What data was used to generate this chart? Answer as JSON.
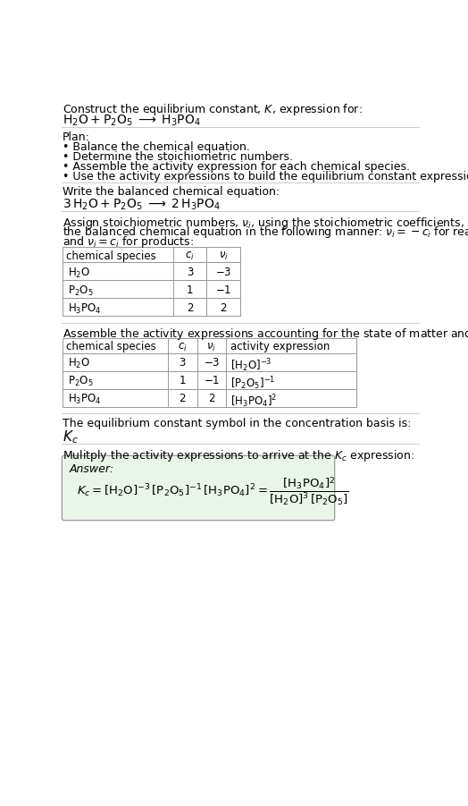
{
  "title_line1": "Construct the equilibrium constant, $K$, expression for:",
  "title_line2": "$\\mathrm{H_2O + P_2O_5 \\;\\longrightarrow\\; H_3PO_4}$",
  "plan_header": "Plan:",
  "plan_steps": [
    "• Balance the chemical equation.",
    "• Determine the stoichiometric numbers.",
    "• Assemble the activity expression for each chemical species.",
    "• Use the activity expressions to build the equilibrium constant expression."
  ],
  "balanced_header": "Write the balanced chemical equation:",
  "balanced_eq": "$\\mathrm{3\\,H_2O + P_2O_5 \\;\\longrightarrow\\; 2\\,H_3PO_4}$",
  "stoich_lines": [
    "Assign stoichiometric numbers, $\\nu_i$, using the stoichiometric coefficients, $c_i$, from",
    "the balanced chemical equation in the following manner: $\\nu_i = -c_i$ for reactants",
    "and $\\nu_i = c_i$ for products:"
  ],
  "table1_cols": [
    "chemical species",
    "$c_i$",
    "$\\nu_i$"
  ],
  "table1_rows": [
    [
      "$\\mathrm{H_2O}$",
      "3",
      "$-3$"
    ],
    [
      "$\\mathrm{P_2O_5}$",
      "1",
      "$-1$"
    ],
    [
      "$\\mathrm{H_3PO_4}$",
      "2",
      "2"
    ]
  ],
  "activity_header": "Assemble the activity expressions accounting for the state of matter and $\\nu_i$:",
  "table2_cols": [
    "chemical species",
    "$c_i$",
    "$\\nu_i$",
    "activity expression"
  ],
  "table2_rows": [
    [
      "$\\mathrm{H_2O}$",
      "3",
      "$-3$",
      "$[\\mathrm{H_2O}]^{-3}$"
    ],
    [
      "$\\mathrm{P_2O_5}$",
      "1",
      "$-1$",
      "$[\\mathrm{P_2O_5}]^{-1}$"
    ],
    [
      "$\\mathrm{H_3PO_4}$",
      "2",
      "2",
      "$[\\mathrm{H_3PO_4}]^{2}$"
    ]
  ],
  "kc_header": "The equilibrium constant symbol in the concentration basis is:",
  "kc_symbol": "$K_c$",
  "multiply_header": "Mulitply the activity expressions to arrive at the $K_c$ expression:",
  "answer_label": "Answer:",
  "answer_eq": "$K_c = [\\mathrm{H_2O}]^{-3}\\,[\\mathrm{P_2O_5}]^{-1}\\,[\\mathrm{H_3PO_4}]^{2} = \\dfrac{[\\mathrm{H_3PO_4}]^{2}}{[\\mathrm{H_2O}]^{3}\\,[\\mathrm{P_2O_5}]}$",
  "bg_color": "#ffffff",
  "text_color": "#000000",
  "table_border_color": "#999999",
  "answer_box_bg": "#e8f5e8",
  "answer_box_border": "#999999",
  "sep_line_color": "#cccccc",
  "font_size": 9.0,
  "small_font": 8.5
}
